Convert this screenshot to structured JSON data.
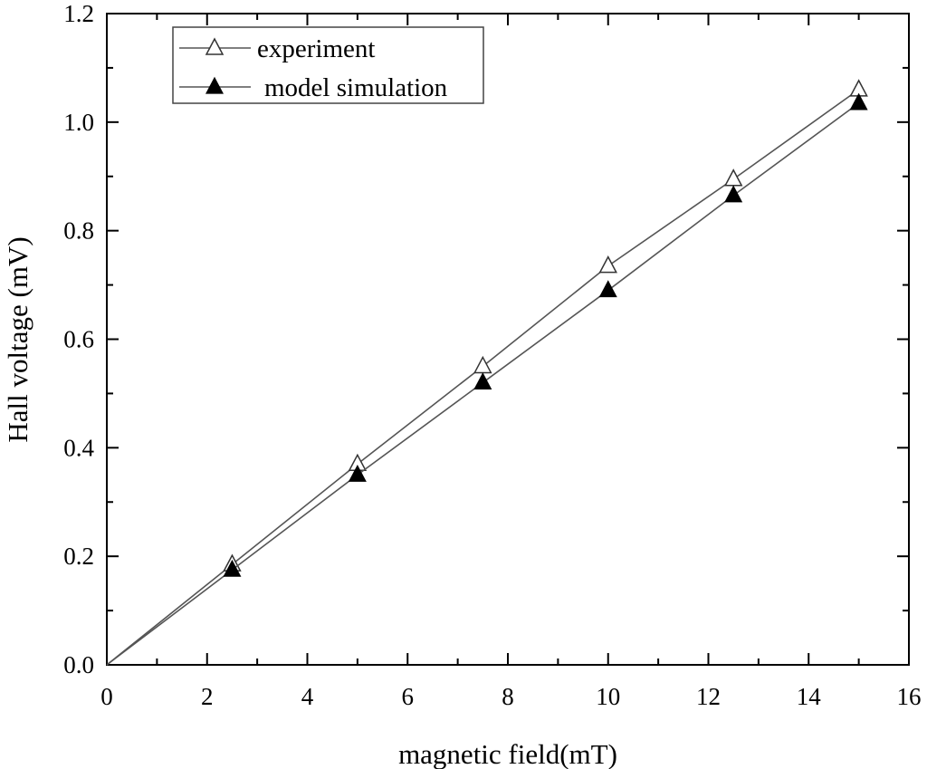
{
  "chart_data": {
    "type": "line",
    "title": "",
    "xlabel": "magnetic field(mT)",
    "ylabel": "Hall voltage (mV)",
    "xlim": [
      0,
      16
    ],
    "ylim": [
      0.0,
      1.2
    ],
    "x_ticks": [
      0,
      2,
      4,
      6,
      8,
      10,
      12,
      14,
      16
    ],
    "x_tick_labels": [
      "0",
      "2",
      "4",
      "6",
      "8",
      "10",
      "12",
      "14",
      "16"
    ],
    "y_ticks": [
      0.0,
      0.2,
      0.4,
      0.6,
      0.8,
      1.0,
      1.2
    ],
    "y_tick_labels": [
      "0.0",
      "0.2",
      "0.4",
      "0.6",
      "0.8",
      "1.0",
      "1.2"
    ],
    "grid": false,
    "legend_position": "top-left",
    "series": [
      {
        "name": "experiment",
        "marker": "open-triangle",
        "x": [
          0,
          2.5,
          5,
          7.5,
          10,
          12.5,
          15
        ],
        "y": [
          0.0,
          0.185,
          0.37,
          0.55,
          0.735,
          0.895,
          1.06
        ]
      },
      {
        "name": "model simulation",
        "marker": "filled-triangle",
        "x": [
          0,
          2.5,
          5,
          7.5,
          10,
          12.5,
          15
        ],
        "y": [
          0.0,
          0.175,
          0.35,
          0.52,
          0.69,
          0.865,
          1.035
        ]
      }
    ]
  }
}
